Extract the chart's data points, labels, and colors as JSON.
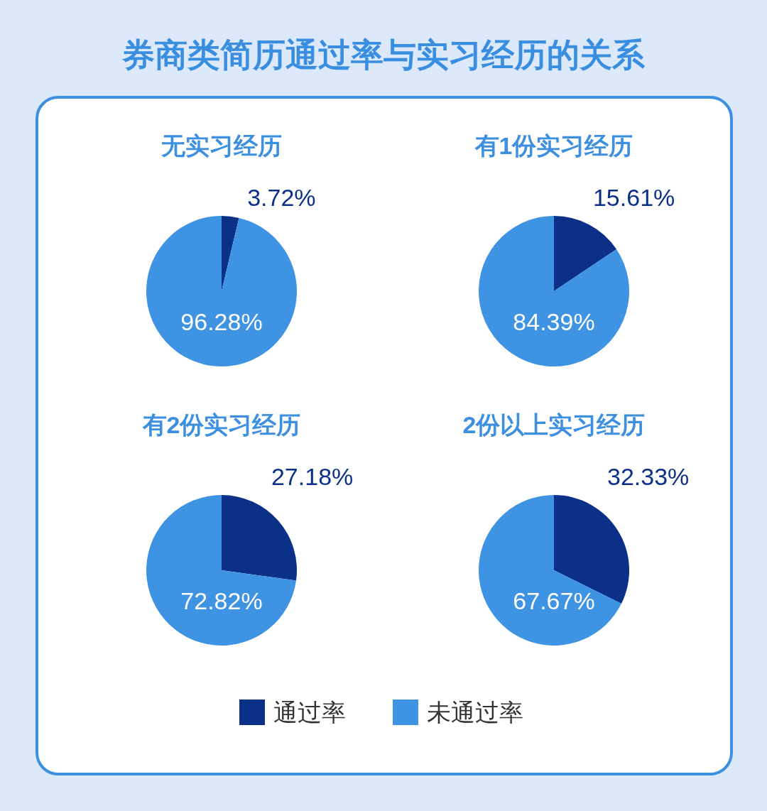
{
  "chart_data": [
    {
      "type": "other",
      "title": "券商类简历通过率与实习经历的关系"
    },
    {
      "type": "pie",
      "title": "无实习经历",
      "categories": [
        null,
        null
      ],
      "values": [
        3.72,
        96.28
      ],
      "colors": [
        "#0b3087",
        "#3e93e2"
      ],
      "value_labels": [
        "3.72%",
        "96.28%"
      ]
    },
    {
      "type": "pie",
      "title": "有1份实习经历",
      "categories": [
        null,
        null
      ],
      "values": [
        15.61,
        84.39
      ],
      "colors": [
        "#0b3087",
        "#3e93e2"
      ],
      "value_labels": [
        "15.61%",
        "84.39%"
      ]
    },
    {
      "type": "pie",
      "title": "有2份实习经历",
      "categories": [
        null,
        null
      ],
      "values": [
        27.18,
        72.82
      ],
      "colors": [
        "#0b3087",
        "#3e93e2"
      ],
      "value_labels": [
        "27.18%",
        "72.82%"
      ]
    },
    {
      "type": "pie",
      "title": "2份以上实习经历",
      "categories": [
        "通过率",
        "未通过率"
      ],
      "values": [
        32.33,
        67.67
      ],
      "colors": [
        "#0b3087",
        "#3e93e2"
      ],
      "value_labels": [
        "32.33%",
        "67.67%"
      ],
      "legend": "bottom"
    }
  ]
}
